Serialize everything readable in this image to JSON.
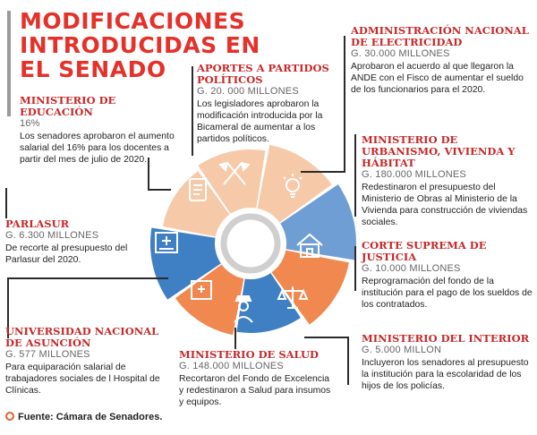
{
  "title": [
    "MODIFICACIONES",
    "INTRODUCIDAS EN",
    "EL SENADO"
  ],
  "colors": {
    "red": "#e4322b",
    "orange": "#f0884f",
    "light_orange": "#f6c9a9",
    "blue": "#3f7fc4",
    "mid_blue": "#6f9ed4"
  },
  "blocks": {
    "educacion": {
      "heading": "MINISTERIO DE EDUCACIÓN",
      "amount": "16%",
      "text": "Los senadores aprobaron el aumento salarial del 16% para los docentes a partir del mes de julio de 2020."
    },
    "partidos": {
      "heading": "APORTES A PARTIDOS POLÍTICOS",
      "amount": "G. 20. 000 MILLONES",
      "text": "Los legisladores aprobaron la modificación introducida por la Bicameral de aumentar a los partidos políticos."
    },
    "ande": {
      "heading": "ADMINISTRACIÓN NACIONAL DE ELECTRICIDAD",
      "amount": "G. 30.000 MILLONES",
      "text": "Aprobaron el acuerdo al que llegaron la ANDE con el Fisco de aumentar el sueldo de los funcionarios para el 2020."
    },
    "urbanismo": {
      "heading": "MINISTERIO DE URBANISMO, VIVIENDA Y HÁBITAT",
      "amount": "G. 180.000 MILLONES",
      "text": "Redestinaron el presupuesto del Ministerio de Obras al Ministerio de la Vivienda para construcción de viviendas sociales."
    },
    "parlasur": {
      "heading": "PARLASUR",
      "amount": "G. 6.300 MILLONES",
      "text": "De recorte al presupuesto del Parlasur del 2020."
    },
    "corte": {
      "heading": "CORTE SUPREMA DE JUSTICIA",
      "amount": "G. 10.000 MILLONES",
      "text": "Reprogramación del fondo de la institución para el pago de los sueldos de los contratados."
    },
    "una": {
      "heading": "UNIVERSIDAD NACIONAL DE ASUNCIÓN",
      "amount": "G. 577 MILLONES",
      "text": "Para equiparación salarial de trabajadores sociales de l Hospital de Clínicas."
    },
    "salud": {
      "heading": "MINISTERIO DE SALUD",
      "amount": "G. 148.000 MILLONES",
      "text": "Recortaron del Fondo de Excelencia y redestinaron a Salud para insumos y equipos."
    },
    "interior": {
      "heading": "MINISTERIO DEL INTERIOR",
      "amount": "G. 5.000 MILLON",
      "text": "Incluyeron los senadores al presupuesto la institución para la escolaridad de los hijos de los policías."
    }
  },
  "wheel_icons": [
    "document-icon",
    "flags-icon",
    "lightbulb-icon",
    "house-icon",
    "scales-icon",
    "police-officer-icon",
    "hospital-icon",
    "university-icon"
  ],
  "footer": "Fuente: Cámara de Senadores."
}
